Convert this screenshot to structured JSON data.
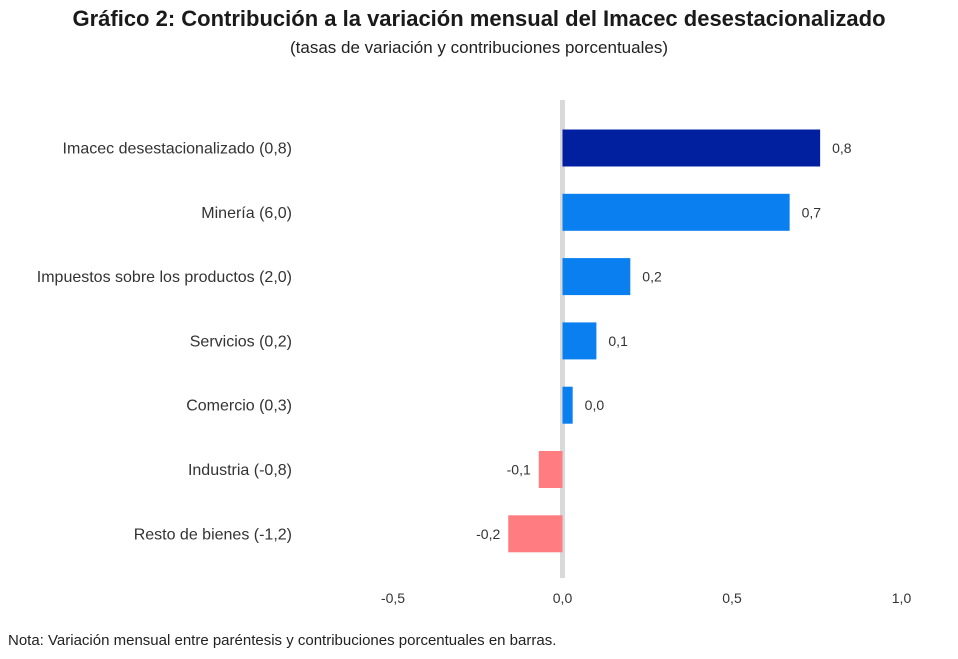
{
  "title": "Gráfico 2: Contribución a la variación mensual del Imacec desestacionalizado",
  "subtitle": "(tasas de variación y contribuciones porcentuales)",
  "note": "Nota: Variación mensual entre paréntesis y contribuciones porcentuales en barras.",
  "chart_data": {
    "type": "bar",
    "orientation": "horizontal",
    "categories": [
      "Imacec desestacionalizado (0,8)",
      "Minería (6,0)",
      "Impuestos sobre los productos (2,0)",
      "Servicios (0,2)",
      "Comercio (0,3)",
      "Industria (-0,8)",
      "Resto de bienes (-1,2)"
    ],
    "values": [
      0.76,
      0.67,
      0.2,
      0.1,
      0.03,
      -0.07,
      -0.16
    ],
    "data_labels": [
      "0,8",
      "0,7",
      "0,2",
      "0,1",
      "0,0",
      "-0,1",
      "-0,2"
    ],
    "xlim": [
      -0.5,
      1.0
    ],
    "xticks": [
      -0.5,
      0.0,
      0.5,
      1.0
    ],
    "xtick_labels": [
      "-0,5",
      "0,0",
      "0,5",
      "1,0"
    ],
    "colors": {
      "total": "#0020a0",
      "positive": "#0a7ff0",
      "negative": "#ff7c80",
      "zero_line": "#d9d9d9"
    },
    "grid": false
  }
}
